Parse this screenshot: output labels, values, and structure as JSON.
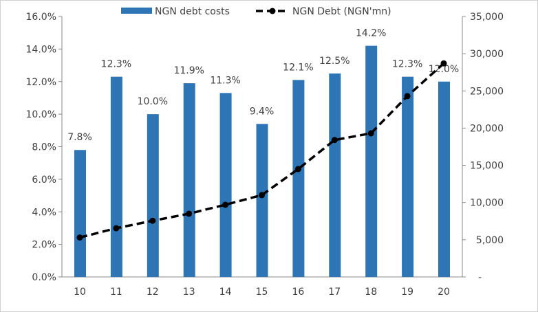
{
  "chart_data": {
    "type": "bar+line",
    "categories": [
      "10",
      "11",
      "12",
      "13",
      "14",
      "15",
      "16",
      "17",
      "18",
      "19",
      "20"
    ],
    "series": [
      {
        "name": "NGN debt costs",
        "type": "bar",
        "axis": "left",
        "color": "#2e75b6",
        "values": [
          7.8,
          12.3,
          10.0,
          11.9,
          11.3,
          9.4,
          12.1,
          12.5,
          14.2,
          12.3,
          12.0
        ],
        "labels": [
          "7.8%",
          "12.3%",
          "10.0%",
          "11.9%",
          "11.3%",
          "9.4%",
          "12.1%",
          "12.5%",
          "14.2%",
          "12.3%",
          "12.0%"
        ]
      },
      {
        "name": "NGN Debt (NGN'mn)",
        "type": "line",
        "axis": "right",
        "color": "#000000",
        "style": "dashed",
        "values": [
          5300,
          6550,
          7550,
          8500,
          9700,
          11000,
          14500,
          18400,
          19300,
          24300,
          28700
        ]
      }
    ],
    "left_axis": {
      "min": 0,
      "max": 16,
      "ticks": [
        "0.0%",
        "2.0%",
        "4.0%",
        "6.0%",
        "8.0%",
        "10.0%",
        "12.0%",
        "14.0%",
        "16.0%"
      ]
    },
    "right_axis": {
      "min": 0,
      "max": 35000,
      "ticks": [
        "-",
        "5,000",
        "10,000",
        "15,000",
        "20,000",
        "25,000",
        "30,000",
        "35,000"
      ]
    },
    "legend": "top",
    "grid": false
  }
}
